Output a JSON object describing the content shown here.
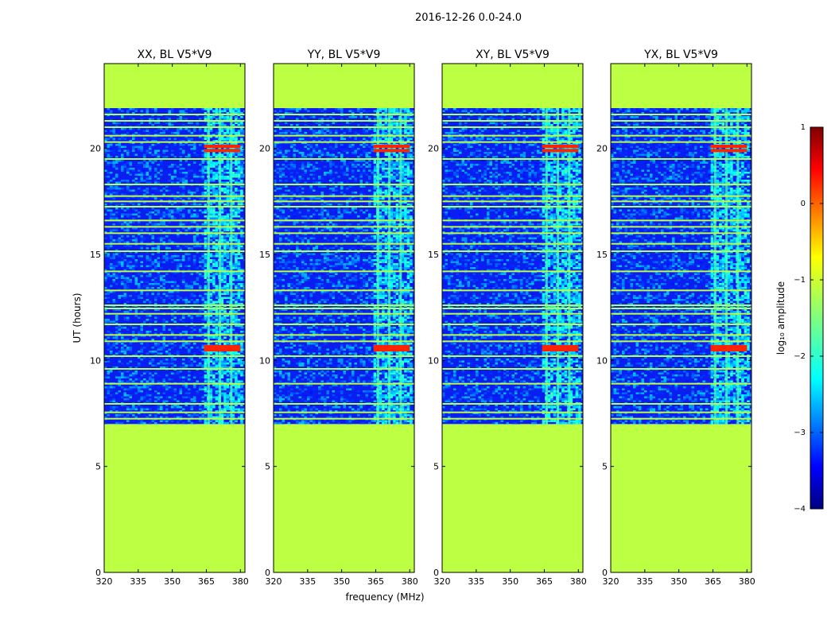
{
  "figure": {
    "suptitle": "2016-12-26 0.0-24.0"
  },
  "chart_data": {
    "type": "heatmap",
    "title": "2016-12-26 0.0-24.0",
    "xlabel": "frequency (MHz)",
    "ylabel": "UT (hours)",
    "xlim": [
      320,
      382
    ],
    "ylim": [
      0,
      24
    ],
    "xticks": [
      320,
      335,
      350,
      365,
      380
    ],
    "yticks": [
      0,
      5,
      10,
      15,
      20
    ],
    "data_hours": [
      7.0,
      21.9
    ],
    "rfi_band_mhz": [
      364,
      380
    ],
    "rfi_channels_mhz": [
      366,
      371,
      376
    ],
    "flagged_rows_ut": [
      7.25,
      7.55,
      7.95,
      8.9,
      9.6,
      10.2,
      10.9,
      11.2,
      11.7,
      12.2,
      12.45,
      12.6,
      13.3,
      14.2,
      15.15,
      15.5,
      16.0,
      16.3,
      16.6,
      17.25,
      17.5,
      17.75,
      18.3,
      19.5,
      20.3,
      20.6,
      21.0,
      21.3,
      21.6
    ],
    "hot_rows_ut": [
      10.5,
      10.65,
      20.1,
      19.9
    ],
    "panels": [
      {
        "title": "XX, BL V5*V9",
        "pol": "XX",
        "baseline": "V5*V9"
      },
      {
        "title": "YY, BL V5*V9",
        "pol": "YY",
        "baseline": "V5*V9"
      },
      {
        "title": "XY, BL V5*V9",
        "pol": "XY",
        "baseline": "V5*V9"
      },
      {
        "title": "YX, BL V5*V9",
        "pol": "YX",
        "baseline": "V5*V9"
      }
    ],
    "colorbar": {
      "label": "log₁₀ amplitude",
      "min": -4,
      "max": 1,
      "ticks": [
        {
          "value": 1,
          "label": "1"
        },
        {
          "value": 0,
          "label": "0"
        },
        {
          "value": -1,
          "label": "−1"
        },
        {
          "value": -2,
          "label": "−2"
        },
        {
          "value": -3,
          "label": "−3"
        },
        {
          "value": -4,
          "label": "−4"
        }
      ],
      "colormap": "jet",
      "fill_value": -1.2
    }
  }
}
